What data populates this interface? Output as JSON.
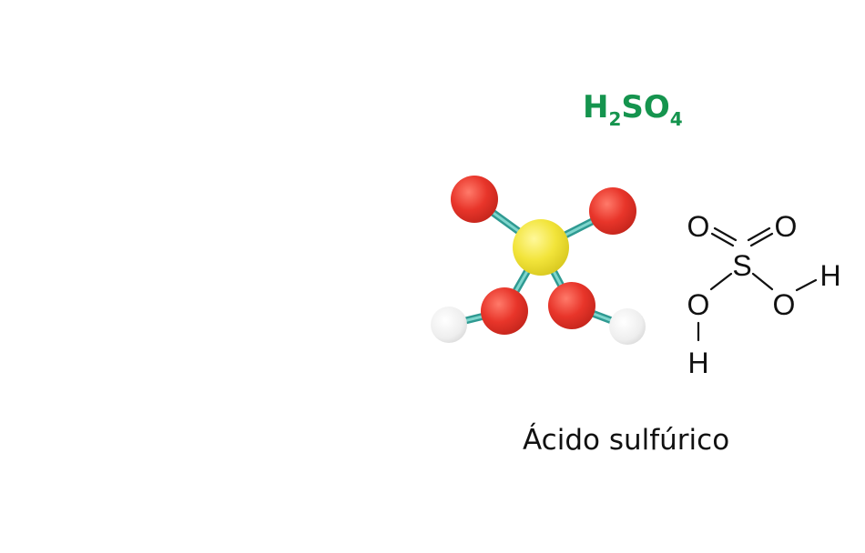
{
  "formula": {
    "p1": "H",
    "s1": "2",
    "p2": "SO",
    "s2": "4"
  },
  "structural": {
    "o_top_left": "O",
    "o_top_right": "O",
    "s_center": "S",
    "o_bottom_left": "O",
    "o_bottom_right": "O",
    "h_right": "H",
    "h_bottom": "H"
  },
  "caption": "Ácido sulfúrico",
  "colors": {
    "formula": "#15944e",
    "sulfur": "#f3e63a",
    "oxygen": "#e6352b",
    "hydrogen": "#eeeeee",
    "bond": "#4fbcb2"
  }
}
